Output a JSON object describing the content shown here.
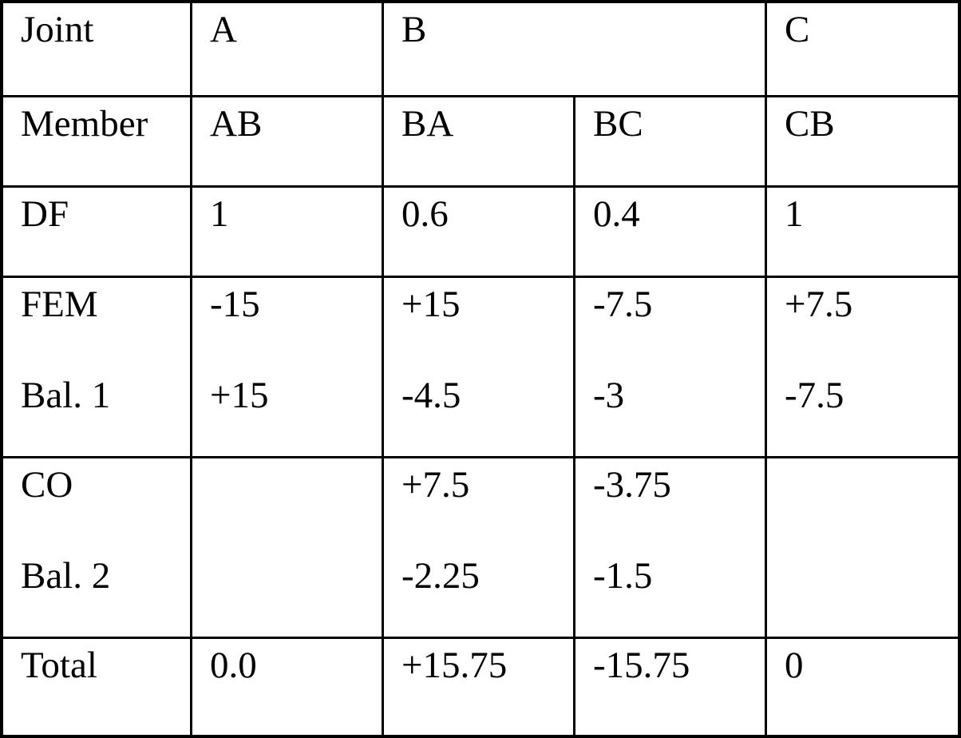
{
  "table": {
    "joint_row": {
      "label": "Joint",
      "a": "A",
      "b": "B",
      "c": "C"
    },
    "member_row": {
      "label": "Member",
      "cells": [
        "AB",
        "BA",
        "BC",
        "CB"
      ]
    },
    "df_row": {
      "label": "DF",
      "cells": [
        "1",
        "0.6",
        "0.4",
        "1"
      ]
    },
    "fem_bal1_row": {
      "labels": [
        "FEM",
        "Bal. 1"
      ],
      "ab": [
        "-15",
        "+15"
      ],
      "ba": [
        "+15",
        "-4.5"
      ],
      "bc": [
        "-7.5",
        "-3"
      ],
      "cb": [
        "+7.5",
        "-7.5"
      ]
    },
    "co_bal2_row": {
      "labels": [
        "CO",
        "Bal. 2"
      ],
      "ab": [
        "",
        ""
      ],
      "ba": [
        "+7.5",
        "-2.25"
      ],
      "bc": [
        "-3.75",
        "-1.5"
      ],
      "cb": [
        "",
        ""
      ]
    },
    "total_row": {
      "label": "Total",
      "cells": [
        "0.0",
        "+15.75",
        "-15.75",
        "0"
      ]
    }
  }
}
